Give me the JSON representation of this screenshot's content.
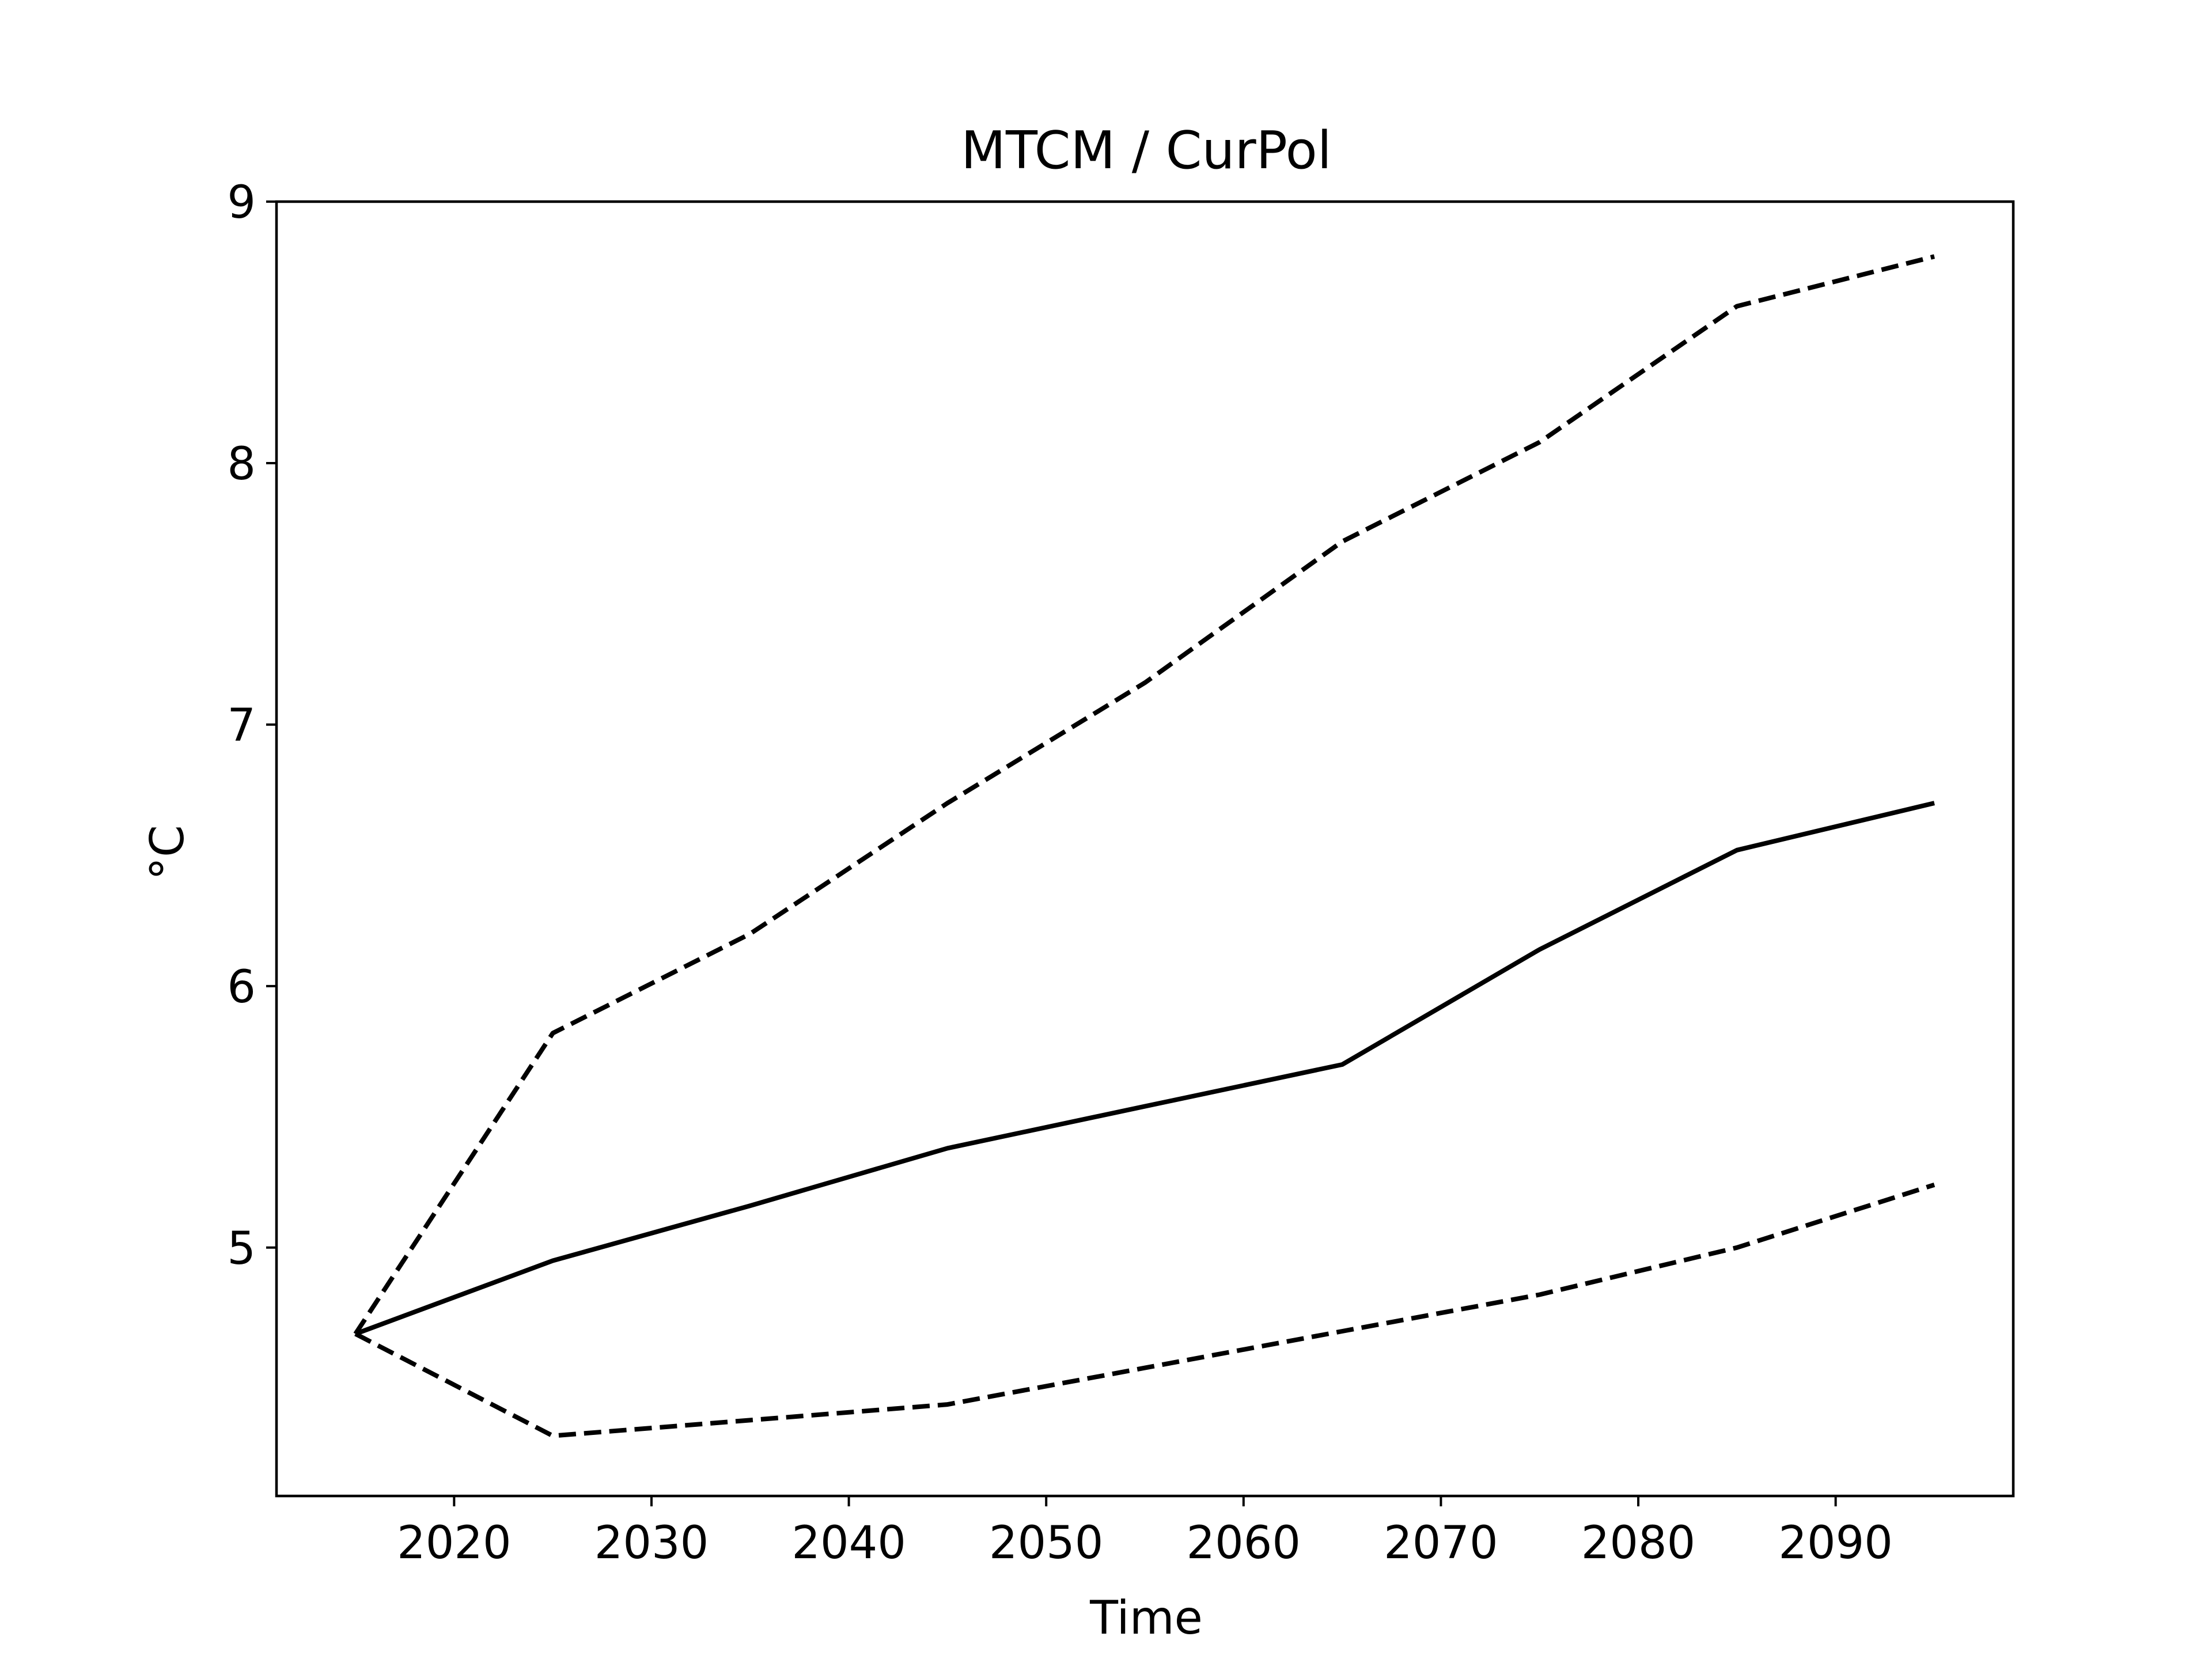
{
  "chart_data": {
    "type": "line",
    "title": "MTCM / CurPol",
    "xlabel": "Time",
    "ylabel": "°C",
    "xlim": [
      2011,
      2099
    ],
    "ylim": [
      4.05,
      9.0
    ],
    "xticks": [
      2020,
      2030,
      2040,
      2050,
      2060,
      2070,
      2080,
      2090
    ],
    "yticks": [
      5,
      6,
      7,
      8,
      9
    ],
    "grid": false,
    "legend": "none",
    "x": [
      2015,
      2025,
      2035,
      2045,
      2055,
      2065,
      2075,
      2085,
      2095
    ],
    "series": [
      {
        "values": [
          4.67,
          5.82,
          6.2,
          6.7,
          7.16,
          7.7,
          8.08,
          8.6,
          8.79
        ],
        "style": "dashed",
        "color": "#000000"
      },
      {
        "values": [
          4.67,
          4.95,
          5.16,
          5.38,
          5.54,
          5.7,
          6.14,
          6.52,
          6.7
        ],
        "style": "solid",
        "color": "#000000"
      },
      {
        "values": [
          4.67,
          4.28,
          4.34,
          4.4,
          4.54,
          4.68,
          4.82,
          5.0,
          5.24
        ],
        "style": "dashed",
        "color": "#000000"
      }
    ]
  }
}
